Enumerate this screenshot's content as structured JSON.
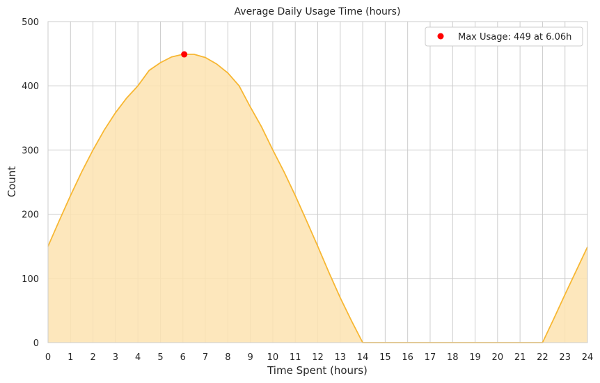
{
  "chart_data": {
    "type": "area",
    "title": "Average Daily Usage Time (hours)",
    "xlabel": "Time Spent (hours)",
    "ylabel": "Count",
    "xlim": [
      0,
      24
    ],
    "ylim": [
      0,
      500
    ],
    "x_ticks": [
      0,
      1,
      2,
      3,
      4,
      5,
      6,
      7,
      8,
      9,
      10,
      11,
      12,
      13,
      14,
      15,
      16,
      17,
      18,
      19,
      20,
      21,
      22,
      23,
      24
    ],
    "y_ticks": [
      0,
      100,
      200,
      300,
      400,
      500
    ],
    "grid": true,
    "x": [
      0,
      0.5,
      1,
      1.5,
      2,
      2.5,
      3,
      3.5,
      4,
      4.5,
      5,
      5.5,
      6,
      6.06,
      6.5,
      7,
      7.5,
      8,
      8.5,
      9,
      9.5,
      10,
      10.5,
      11,
      11.5,
      12,
      12.5,
      13,
      13.5,
      14,
      14.5,
      15,
      15.5,
      16,
      16.5,
      17,
      17.5,
      18,
      18.5,
      19,
      19.5,
      20,
      20.5,
      21,
      21.5,
      22,
      22.5,
      23,
      23.5,
      24
    ],
    "series": [
      {
        "values": [
          150,
          190,
          229,
          266,
          300,
          331,
          358,
          381,
          400,
          424,
          436,
          445,
          449,
          449,
          449,
          444,
          434,
          420,
          400,
          367,
          336,
          300,
          266,
          229,
          190,
          150,
          109,
          70,
          34,
          0,
          0,
          0,
          0,
          0,
          0,
          0,
          0,
          0,
          0,
          0,
          0,
          0,
          0,
          0,
          0,
          0,
          37,
          75,
          112,
          149
        ],
        "color": "#f7b733",
        "fill_color": "#fde3b0"
      }
    ],
    "annotation": {
      "label": "Max Usage: 449 at 6.06h",
      "x": 6.06,
      "y": 449,
      "color": "#ff0000"
    },
    "legend_position": "top-right"
  }
}
